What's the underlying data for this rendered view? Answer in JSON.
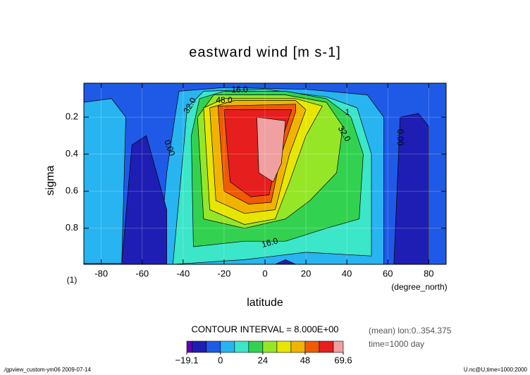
{
  "chart_data": {
    "type": "contour",
    "title": "eastward wind [m s-1]",
    "x_label": "latitude",
    "x_units": "(degree_north)",
    "y_label": "sigma",
    "y_units": "(1)",
    "xlim": [
      -88.5,
      88.5
    ],
    "xticks": [
      -80,
      -60,
      -40,
      -20,
      0,
      20,
      40,
      60,
      80
    ],
    "ylim": [
      0.995,
      0.0167
    ],
    "yticks": [
      0.2,
      0.4,
      0.6,
      0.8
    ],
    "grid": true,
    "contour_interval_text": "CONTOUR INTERVAL = 8.000E+00",
    "info_lines": [
      "(mean) lon:0..354.375",
      "time=1000 day"
    ],
    "footer_left": "./gpview_custom-ym06  2009-07-14",
    "footer_right": "U.nc@U,time=1000:2000",
    "levels": [
      -19.1,
      -16,
      -8,
      0,
      8,
      16,
      24,
      32,
      40,
      48,
      56,
      64,
      69.6
    ],
    "colors": [
      "#6400b4",
      "#1e1eb4",
      "#1e5ae6",
      "#28b4f0",
      "#3ce6c8",
      "#32d250",
      "#96e628",
      "#e6e600",
      "#f0b400",
      "#f05a00",
      "#e61e1e",
      "#f0a0a0"
    ],
    "colorbar_ticks": [
      {
        "value": -19.1,
        "label": "−19.1"
      },
      0,
      24,
      48,
      69.6
    ],
    "background_level": 2,
    "regions": [
      {
        "level": 3,
        "points": [
          [
            -88.5,
            0.12
          ],
          [
            -75,
            0.1
          ],
          [
            -68,
            0.2
          ],
          [
            -70,
            0.99
          ],
          [
            -88.5,
            0.99
          ]
        ]
      },
      {
        "level": 3,
        "points": [
          [
            -52,
            0.995
          ],
          [
            -48,
            0.5
          ],
          [
            -44,
            0.2
          ],
          [
            -42,
            0.06
          ],
          [
            -20,
            0.04
          ],
          [
            20,
            0.05
          ],
          [
            50,
            0.08
          ],
          [
            58,
            0.2
          ],
          [
            58,
            0.995
          ]
        ]
      },
      {
        "level": 4,
        "points": [
          [
            -45,
            0.995
          ],
          [
            -40,
            0.4
          ],
          [
            -38,
            0.15
          ],
          [
            -30,
            0.06
          ],
          [
            0,
            0.05
          ],
          [
            30,
            0.09
          ],
          [
            45,
            0.15
          ],
          [
            52,
            0.4
          ],
          [
            52,
            0.95
          ],
          [
            20,
            0.93
          ],
          [
            -10,
            0.97
          ]
        ]
      },
      {
        "level": 5,
        "points": [
          [
            -35,
            0.9
          ],
          [
            -36,
            0.3
          ],
          [
            -32,
            0.1
          ],
          [
            -20,
            0.06
          ],
          [
            10,
            0.06
          ],
          [
            30,
            0.1
          ],
          [
            42,
            0.2
          ],
          [
            48,
            0.4
          ],
          [
            46,
            0.75
          ],
          [
            30,
            0.8
          ],
          [
            10,
            0.87
          ],
          [
            -10,
            0.87
          ]
        ]
      },
      {
        "level": 6,
        "points": [
          [
            -30,
            0.75
          ],
          [
            -33,
            0.2
          ],
          [
            -25,
            0.08
          ],
          [
            10,
            0.08
          ],
          [
            30,
            0.12
          ],
          [
            38,
            0.25
          ],
          [
            35,
            0.5
          ],
          [
            22,
            0.65
          ],
          [
            10,
            0.75
          ],
          [
            -10,
            0.8
          ]
        ]
      },
      {
        "level": 7,
        "points": [
          [
            -27,
            0.7
          ],
          [
            -30,
            0.15
          ],
          [
            -20,
            0.1
          ],
          [
            15,
            0.1
          ],
          [
            28,
            0.14
          ],
          [
            20,
            0.3
          ],
          [
            12,
            0.55
          ],
          [
            5,
            0.75
          ],
          [
            -10,
            0.78
          ]
        ]
      },
      {
        "level": 8,
        "points": [
          [
            -24,
            0.65
          ],
          [
            -27,
            0.15
          ],
          [
            -15,
            0.11
          ],
          [
            15,
            0.11
          ],
          [
            20,
            0.16
          ],
          [
            12,
            0.4
          ],
          [
            5,
            0.7
          ],
          [
            -10,
            0.72
          ]
        ]
      },
      {
        "level": 9,
        "points": [
          [
            -20,
            0.6
          ],
          [
            -23,
            0.14
          ],
          [
            15,
            0.13
          ],
          [
            15,
            0.17
          ],
          [
            8,
            0.4
          ],
          [
            3,
            0.66
          ],
          [
            -8,
            0.67
          ]
        ]
      },
      {
        "level": 10,
        "points": [
          [
            -17,
            0.55
          ],
          [
            -20,
            0.16
          ],
          [
            13,
            0.16
          ],
          [
            6,
            0.4
          ],
          [
            2,
            0.62
          ],
          [
            -7,
            0.63
          ]
        ]
      },
      {
        "level": 11,
        "points": [
          [
            -4,
            0.2
          ],
          [
            10,
            0.22
          ],
          [
            8,
            0.45
          ],
          [
            4,
            0.55
          ],
          [
            -3,
            0.5
          ]
        ]
      },
      {
        "level": 1,
        "points": [
          [
            -65,
            0.35
          ],
          [
            -58,
            0.3
          ],
          [
            -48,
            0.7
          ],
          [
            -48,
            0.995
          ],
          [
            -70,
            0.995
          ]
        ]
      },
      {
        "level": 1,
        "points": [
          [
            66,
            0.2
          ],
          [
            75,
            0.18
          ],
          [
            80,
            0.25
          ],
          [
            80,
            0.995
          ],
          [
            63,
            0.995
          ]
        ]
      },
      {
        "level": 1,
        "points": [
          [
            5,
            0.995
          ],
          [
            10,
            0.97
          ],
          [
            15,
            0.995
          ]
        ]
      }
    ],
    "contour_labels": [
      "16.0",
      "48.0",
      "32.0",
      "0.00",
      "1",
      "32.0",
      "0.00",
      "16.0"
    ]
  }
}
